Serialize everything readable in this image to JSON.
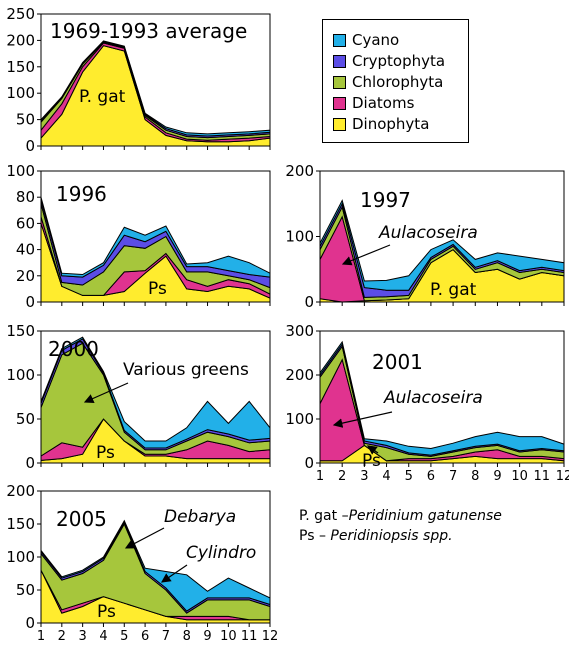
{
  "colors": {
    "Cyano": "#22b0e8",
    "Cryptophyta": "#5b4de6",
    "Chlorophyta": "#a6c63c",
    "Diatoms": "#e0338f",
    "Dinophyta": "#ffec2e"
  },
  "legend": {
    "items": [
      {
        "label": "Cyano",
        "key": "Cyano"
      },
      {
        "label": "Cryptophyta",
        "key": "Cryptophyta"
      },
      {
        "label": "Chlorophyta",
        "key": "Chlorophyta"
      },
      {
        "label": "Diatoms",
        "key": "Diatoms"
      },
      {
        "label": "Dinophyta",
        "key": "Dinophyta"
      }
    ]
  },
  "notes": {
    "pgat_abbr": "P. gat",
    "pgat_sep": " –",
    "pgat_name": "Peridinium gatunense",
    "ps_abbr": "Ps",
    "ps_sep": " – ",
    "ps_name": "Peridiniopsis spp."
  },
  "chart_data": [
    {
      "type": "area",
      "stacked": true,
      "title": "1969-1993 average",
      "x": [
        1,
        2,
        3,
        4,
        5,
        6,
        7,
        8,
        9,
        10,
        11,
        12
      ],
      "xlabels": [],
      "ylim": [
        0,
        250
      ],
      "yticks": [
        0,
        50,
        100,
        150,
        200,
        250
      ],
      "annotations": [
        {
          "text": "P. gat",
          "italic": false
        }
      ],
      "series": [
        {
          "name": "Dinophyta",
          "values": [
            15,
            60,
            140,
            190,
            180,
            50,
            20,
            10,
            8,
            8,
            10,
            15
          ]
        },
        {
          "name": "Diatoms",
          "values": [
            15,
            20,
            10,
            5,
            5,
            5,
            5,
            3,
            3,
            5,
            5,
            3
          ]
        },
        {
          "name": "Chlorophyta",
          "values": [
            15,
            10,
            5,
            2,
            2,
            3,
            5,
            5,
            5,
            5,
            5,
            5
          ]
        },
        {
          "name": "Cryptophyta",
          "values": [
            3,
            2,
            2,
            1,
            1,
            2,
            3,
            3,
            3,
            3,
            3,
            3
          ]
        },
        {
          "name": "Cyano",
          "values": [
            2,
            1,
            1,
            1,
            1,
            2,
            3,
            4,
            4,
            4,
            4,
            4
          ]
        }
      ]
    },
    {
      "type": "area",
      "stacked": true,
      "title": "1996",
      "x": [
        1,
        2,
        3,
        4,
        5,
        6,
        7,
        8,
        9,
        10,
        11,
        12
      ],
      "xlabels": [],
      "ylim": [
        0,
        100
      ],
      "yticks": [
        0,
        20,
        40,
        60,
        80,
        100
      ],
      "annotations": [
        {
          "text": "Ps",
          "italic": false
        }
      ],
      "series": [
        {
          "name": "Dinophyta",
          "values": [
            60,
            12,
            5,
            5,
            8,
            22,
            35,
            10,
            8,
            12,
            10,
            3
          ]
        },
        {
          "name": "Diatoms",
          "values": [
            5,
            0,
            0,
            0,
            15,
            2,
            2,
            7,
            4,
            5,
            4,
            3
          ]
        },
        {
          "name": "Chlorophyta",
          "values": [
            10,
            3,
            8,
            18,
            20,
            17,
            13,
            6,
            11,
            3,
            3,
            5
          ]
        },
        {
          "name": "Cryptophyta",
          "values": [
            3,
            5,
            6,
            5,
            8,
            5,
            4,
            4,
            4,
            4,
            4,
            8
          ]
        },
        {
          "name": "Cyano",
          "values": [
            2,
            2,
            2,
            2,
            6,
            5,
            4,
            2,
            3,
            11,
            9,
            3
          ]
        }
      ]
    },
    {
      "type": "area",
      "stacked": true,
      "title": "1997",
      "x": [
        1,
        2,
        3,
        4,
        5,
        6,
        7,
        8,
        9,
        10,
        11,
        12
      ],
      "xlabels": [],
      "ylim": [
        0,
        200
      ],
      "yticks": [
        0,
        100,
        200
      ],
      "annotations": [
        {
          "text": "Aulacoseira",
          "italic": true
        },
        {
          "text": "P. gat",
          "italic": false
        }
      ],
      "series": [
        {
          "name": "Dinophyta",
          "values": [
            5,
            0,
            2,
            3,
            5,
            60,
            80,
            45,
            50,
            35,
            45,
            40
          ]
        },
        {
          "name": "Diatoms",
          "values": [
            60,
            130,
            0,
            0,
            0,
            0,
            0,
            0,
            0,
            0,
            0,
            0
          ]
        },
        {
          "name": "Chlorophyta",
          "values": [
            15,
            15,
            5,
            5,
            5,
            5,
            5,
            5,
            10,
            10,
            5,
            5
          ]
        },
        {
          "name": "Cryptophyta",
          "values": [
            5,
            5,
            15,
            10,
            8,
            3,
            3,
            3,
            3,
            3,
            3,
            3
          ]
        },
        {
          "name": "Cyano",
          "values": [
            5,
            5,
            10,
            15,
            22,
            12,
            7,
            12,
            12,
            22,
            12,
            12
          ]
        }
      ]
    },
    {
      "type": "area",
      "stacked": true,
      "title": "2000",
      "x": [
        1,
        2,
        3,
        4,
        5,
        6,
        7,
        8,
        9,
        10,
        11,
        12
      ],
      "xlabels": [],
      "ylim": [
        0,
        150
      ],
      "yticks": [
        0,
        50,
        100,
        150
      ],
      "annotations": [
        {
          "text": "Various greens",
          "italic": false
        },
        {
          "text": "Ps",
          "italic": false
        }
      ],
      "series": [
        {
          "name": "Dinophyta",
          "values": [
            3,
            5,
            10,
            50,
            25,
            8,
            8,
            5,
            5,
            5,
            5,
            5
          ]
        },
        {
          "name": "Diatoms",
          "values": [
            5,
            18,
            8,
            0,
            0,
            2,
            2,
            10,
            20,
            15,
            8,
            10
          ]
        },
        {
          "name": "Chlorophyta",
          "values": [
            55,
            100,
            118,
            50,
            10,
            5,
            5,
            10,
            10,
            10,
            10,
            10
          ]
        },
        {
          "name": "Cryptophyta",
          "values": [
            5,
            5,
            5,
            2,
            2,
            2,
            2,
            2,
            3,
            3,
            3,
            3
          ]
        },
        {
          "name": "Cyano",
          "values": [
            2,
            2,
            2,
            2,
            10,
            8,
            8,
            13,
            32,
            12,
            44,
            12
          ]
        }
      ]
    },
    {
      "type": "area",
      "stacked": true,
      "title": "2001",
      "x": [
        1,
        2,
        3,
        4,
        5,
        6,
        7,
        8,
        9,
        10,
        11,
        12
      ],
      "xlabels": [
        "1",
        "2",
        "3",
        "4",
        "5",
        "6",
        "7",
        "8",
        "9",
        "10",
        "11",
        "12"
      ],
      "ylim": [
        0,
        300
      ],
      "yticks": [
        0,
        100,
        200,
        300
      ],
      "annotations": [
        {
          "text": "Aulacoseira",
          "italic": true
        },
        {
          "text": "Ps",
          "italic": false
        }
      ],
      "series": [
        {
          "name": "Dinophyta",
          "values": [
            5,
            5,
            40,
            5,
            5,
            5,
            10,
            15,
            10,
            10,
            10,
            5
          ]
        },
        {
          "name": "Diatoms",
          "values": [
            130,
            230,
            0,
            0,
            5,
            5,
            5,
            10,
            20,
            5,
            5,
            5
          ]
        },
        {
          "name": "Chlorophyta",
          "values": [
            60,
            30,
            5,
            30,
            10,
            5,
            10,
            10,
            10,
            10,
            15,
            15
          ]
        },
        {
          "name": "Cryptophyta",
          "values": [
            5,
            5,
            5,
            5,
            3,
            3,
            3,
            3,
            3,
            3,
            3,
            3
          ]
        },
        {
          "name": "Cyano",
          "values": [
            5,
            5,
            5,
            10,
            15,
            15,
            17,
            22,
            27,
            32,
            27,
            15
          ]
        }
      ]
    },
    {
      "type": "area",
      "stacked": true,
      "title": "2005",
      "x": [
        1,
        2,
        3,
        4,
        5,
        6,
        7,
        8,
        9,
        10,
        11,
        12
      ],
      "xlabels": [
        "1",
        "2",
        "3",
        "4",
        "5",
        "6",
        "7",
        "8",
        "9",
        "10",
        "11",
        "12"
      ],
      "ylim": [
        0,
        200
      ],
      "yticks": [
        0,
        50,
        100,
        150,
        200
      ],
      "annotations": [
        {
          "text": "Debarya",
          "italic": true
        },
        {
          "text": "Cylindro",
          "italic": true
        },
        {
          "text": "Ps",
          "italic": false
        }
      ],
      "series": [
        {
          "name": "Dinophyta",
          "values": [
            80,
            15,
            25,
            40,
            30,
            20,
            10,
            5,
            5,
            5,
            5,
            5
          ]
        },
        {
          "name": "Diatoms",
          "values": [
            0,
            5,
            5,
            0,
            0,
            0,
            0,
            5,
            5,
            5,
            0,
            0
          ]
        },
        {
          "name": "Chlorophyta",
          "values": [
            25,
            45,
            45,
            55,
            120,
            55,
            40,
            5,
            25,
            25,
            30,
            20
          ]
        },
        {
          "name": "Cryptophyta",
          "values": [
            3,
            3,
            3,
            3,
            3,
            3,
            3,
            3,
            3,
            3,
            3,
            3
          ]
        },
        {
          "name": "Cyano",
          "values": [
            2,
            2,
            2,
            2,
            2,
            5,
            25,
            55,
            10,
            30,
            15,
            10
          ]
        }
      ]
    }
  ]
}
